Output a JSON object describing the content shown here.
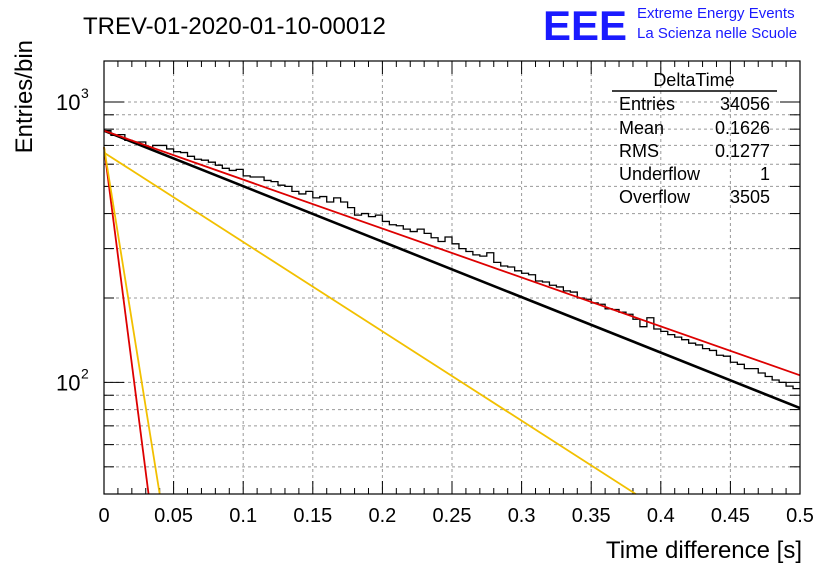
{
  "header": {
    "run_title": "TREV-01-2020-01-10-00012",
    "logo_text": "EEE",
    "logo_line1": "Extreme Energy Events",
    "logo_line2": "La Scienza nelle Scuole"
  },
  "stats": {
    "title": "DeltaTime",
    "rows": [
      {
        "label": "Entries",
        "value": "34056"
      },
      {
        "label": "Mean",
        "value": "0.1626"
      },
      {
        "label": "RMS",
        "value": "0.1277"
      },
      {
        "label": "Underflow",
        "value": "1"
      },
      {
        "label": "Overflow",
        "value": "3505"
      }
    ]
  },
  "colors": {
    "histogram": "#000000",
    "fit_total": "#000000",
    "red_curve": "#dd0000",
    "yellow_curve": "#f2c000",
    "grid": "#999999",
    "logo_blue": "#1a1aff"
  },
  "chart_data": {
    "type": "line",
    "title": "",
    "xlabel": "Time difference [s]",
    "ylabel": "Entries/bin",
    "xlim": [
      0,
      0.5
    ],
    "ylim": [
      40,
      1400
    ],
    "yscale": "log",
    "grid": true,
    "x_ticks": [
      "0",
      "0.05",
      "0.1",
      "0.15",
      "0.2",
      "0.25",
      "0.3",
      "0.35",
      "0.4",
      "0.45",
      "0.5"
    ],
    "y_ticks": [
      {
        "value": 100,
        "base": "10",
        "exp": "2"
      },
      {
        "value": 1000,
        "base": "10",
        "exp": "3"
      }
    ],
    "legend": "top-right",
    "histogram": {
      "bin_width": 0.005,
      "values": [
        790,
        760,
        765,
        730,
        720,
        720,
        690,
        700,
        700,
        680,
        665,
        660,
        640,
        625,
        620,
        610,
        595,
        580,
        570,
        575,
        545,
        540,
        540,
        525,
        520,
        505,
        500,
        480,
        470,
        480,
        455,
        460,
        440,
        455,
        440,
        420,
        395,
        400,
        390,
        395,
        375,
        365,
        362,
        352,
        345,
        352,
        340,
        328,
        318,
        330,
        312,
        300,
        293,
        285,
        282,
        290,
        268,
        260,
        258,
        250,
        245,
        242,
        230,
        228,
        222,
        219,
        212,
        210,
        200,
        198,
        192,
        190,
        183,
        182,
        178,
        175,
        168,
        158,
        170,
        155,
        152,
        148,
        145,
        142,
        138,
        136,
        132,
        130,
        125,
        124,
        118,
        116,
        112,
        112,
        108,
        105,
        102,
        100,
        97,
        95
      ]
    },
    "series": [
      {
        "curve": "total-fit",
        "x": [
          0,
          0.5
        ],
        "y": [
          790,
          81
        ]
      },
      {
        "curve": "long-component",
        "x": [
          0,
          0.5
        ],
        "y": [
          790,
          106
        ]
      },
      {
        "curve": "short-component-red",
        "x": [
          0,
          0.032
        ],
        "y": [
          690,
          40
        ]
      },
      {
        "curve": "medium-component-yellow",
        "x": [
          0,
          0.382
        ],
        "y": [
          660,
          40
        ]
      },
      {
        "curve": "short-component-yellow",
        "x": [
          0,
          0.04
        ],
        "y": [
          690,
          40
        ]
      }
    ]
  }
}
